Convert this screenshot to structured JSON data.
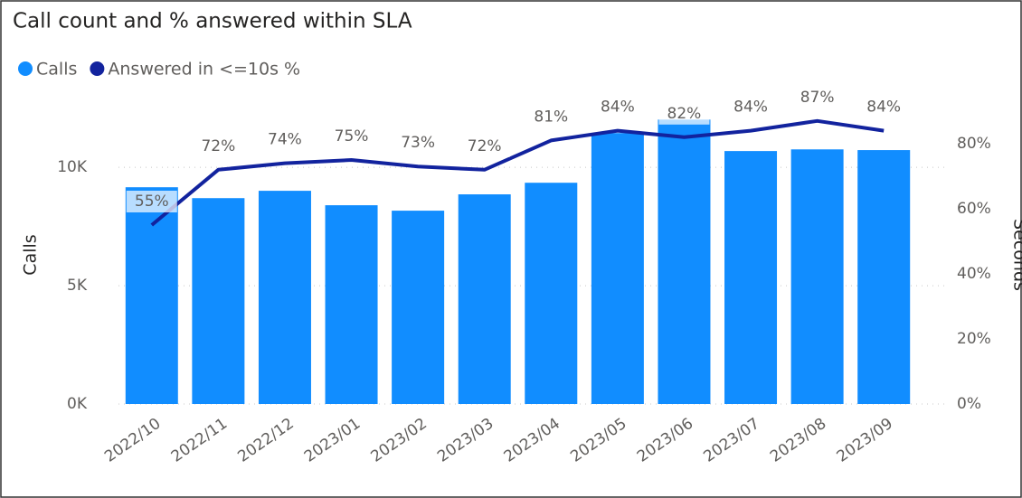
{
  "chart_data": {
    "type": "bar_line",
    "title": "Call count and % answered within SLA",
    "y_label": "Calls",
    "y2_label": "Seconds",
    "categories": [
      "2022/10",
      "2022/11",
      "2022/12",
      "2023/01",
      "2023/02",
      "2023/03",
      "2023/04",
      "2023/05",
      "2023/06",
      "2023/07",
      "2023/08",
      "2023/09"
    ],
    "series": [
      {
        "name": "Calls",
        "type": "bar",
        "color": "#118DFF",
        "values": [
          9160,
          8700,
          9010,
          8400,
          8170,
          8860,
          9350,
          11450,
          12020,
          10690,
          10760,
          10730
        ]
      },
      {
        "name": "Answered in <=10s %",
        "type": "line",
        "axis": "y2",
        "color": "#12239E",
        "values": [
          55,
          72,
          74,
          75,
          73,
          72,
          81,
          84,
          82,
          84,
          87,
          84
        ],
        "value_labels": [
          "55%",
          "72%",
          "74%",
          "75%",
          "73%",
          "72%",
          "81%",
          "84%",
          "82%",
          "84%",
          "87%",
          "84%"
        ]
      }
    ],
    "ylim": [
      0,
      13750
    ],
    "yticks": [
      {
        "value": 0,
        "label": "0K"
      },
      {
        "value": 5000,
        "label": "5K"
      },
      {
        "value": 10000,
        "label": "10K"
      }
    ],
    "y2lim": [
      0,
      100
    ],
    "y2ticks": [
      {
        "value": 0,
        "label": "0%"
      },
      {
        "value": 20,
        "label": "20%"
      },
      {
        "value": 40,
        "label": "40%"
      },
      {
        "value": 60,
        "label": "60%"
      },
      {
        "value": 80,
        "label": "80%"
      }
    ],
    "grid": true
  }
}
